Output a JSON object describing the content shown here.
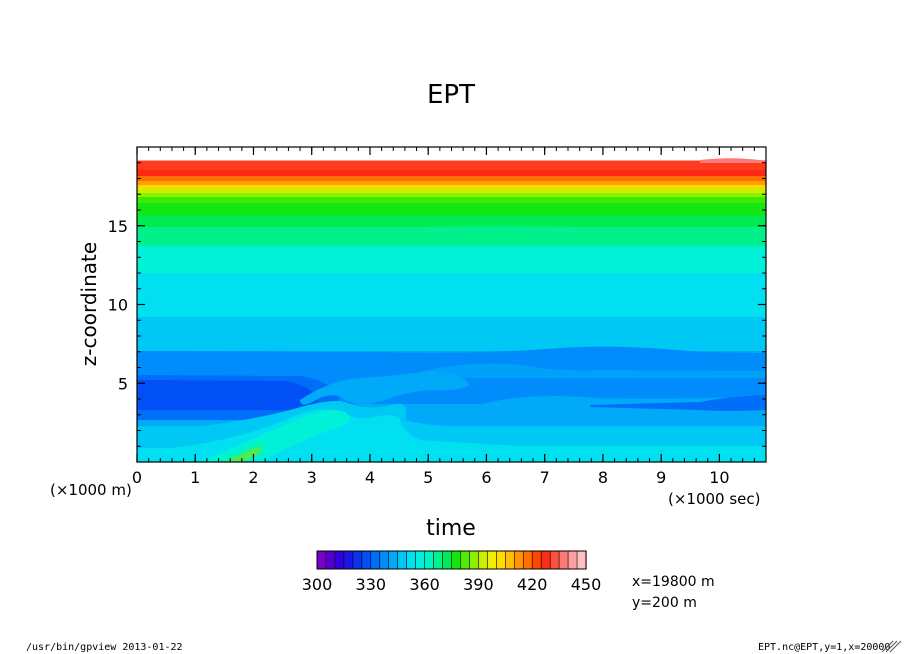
{
  "chart_data": {
    "type": "heatmap",
    "title": "EPT",
    "xlabel": "time",
    "ylabel": "z-coordinate",
    "x_unit_note": "(×1000 sec)",
    "y_unit_note": "(×1000 m)",
    "xlim": [
      0,
      10.8
    ],
    "ylim": [
      0,
      20
    ],
    "x_ticks": [
      0,
      1,
      2,
      3,
      4,
      5,
      6,
      7,
      8,
      9,
      10
    ],
    "y_ticks": [
      5,
      10,
      15
    ],
    "colorbar": {
      "min": 300,
      "max": 450,
      "step": 5,
      "tick_values": [
        300,
        330,
        360,
        390,
        420,
        450
      ],
      "colors": [
        "#7a00c8",
        "#5500d0",
        "#3300dc",
        "#1a14e6",
        "#0a32f0",
        "#0050f5",
        "#006ef8",
        "#008cfa",
        "#00aaf8",
        "#00c8f5",
        "#00e0f0",
        "#00f0e0",
        "#00f5c0",
        "#00f08c",
        "#00eb50",
        "#14e614",
        "#50eb00",
        "#8cf000",
        "#c8f000",
        "#f0f000",
        "#ffdc00",
        "#ffbe00",
        "#ff9600",
        "#ff6e00",
        "#ff4600",
        "#ff2d14",
        "#ff503c",
        "#ff7878",
        "#ffa0a0",
        "#ffc0c0"
      ]
    },
    "annotations": [
      "x=19800 m",
      "y=200 m"
    ]
  },
  "footer": {
    "left": "/usr/bin/gpview  2013-01-22",
    "right": "EPT.nc@EPT,y=1,x=20000"
  }
}
